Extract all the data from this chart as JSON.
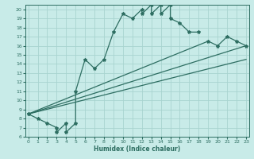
{
  "xlabel": "Humidex (Indice chaleur)",
  "bg_color": "#c8ebe8",
  "grid_color": "#a8d4d0",
  "line_color": "#2e6e62",
  "ylim": [
    6,
    20.5
  ],
  "xlim": [
    -0.3,
    23.3
  ],
  "yticks": [
    6,
    7,
    8,
    9,
    10,
    11,
    12,
    13,
    14,
    15,
    16,
    17,
    18,
    19,
    20
  ],
  "xticks": [
    0,
    1,
    2,
    3,
    4,
    5,
    6,
    7,
    8,
    9,
    10,
    11,
    12,
    13,
    14,
    15,
    16,
    17,
    18,
    19,
    20,
    21,
    22,
    23
  ],
  "series1_x": [
    0,
    1,
    2,
    3,
    3,
    4,
    4,
    5,
    5,
    6,
    7,
    8,
    9,
    10,
    11,
    12,
    12,
    13,
    13,
    14,
    14,
    15,
    15,
    16,
    17,
    18
  ],
  "series1_y": [
    8.5,
    8.0,
    7.5,
    7.0,
    6.5,
    7.5,
    6.5,
    7.5,
    11.0,
    14.5,
    13.5,
    14.5,
    17.5,
    19.5,
    19.0,
    20.0,
    19.5,
    20.5,
    19.5,
    20.5,
    19.5,
    20.5,
    19.0,
    18.5,
    17.5,
    17.5
  ],
  "line1_x": [
    0,
    23
  ],
  "line1_y": [
    8.5,
    16.0
  ],
  "line2_x": [
    0,
    23
  ],
  "line2_y": [
    8.5,
    14.5
  ],
  "series2_x": [
    0,
    19,
    20,
    21,
    22,
    23
  ],
  "series2_y": [
    8.5,
    16.5,
    16.0,
    17.0,
    16.5,
    16.0
  ],
  "marker": "*",
  "marker_size": 3,
  "line_width": 0.9
}
